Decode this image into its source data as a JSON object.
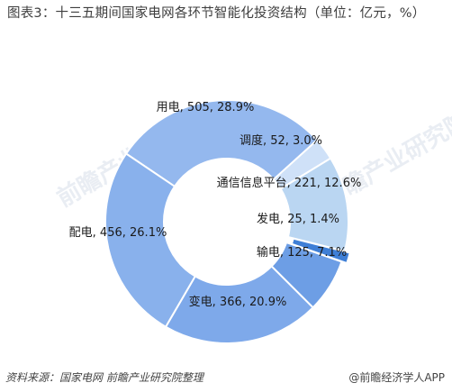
{
  "title": "图表3：十三五期间国家电网各环节智能化投资结构（单位：亿元，%）",
  "footer": {
    "source": "资料来源：国家电网  前瞻产业研究院整理",
    "brand": "@前瞻经济学人APP"
  },
  "watermark": "前瞻产业研究院",
  "chart_data": {
    "type": "pie",
    "variant": "donut",
    "unit": "亿元",
    "slices": [
      {
        "name": "用电",
        "value": 505,
        "percent": 28.9,
        "label": "用电, 505, 28.9%",
        "color": "#94b8ee"
      },
      {
        "name": "调度",
        "value": 52,
        "percent": 3.0,
        "label": "调度, 52, 3.0%",
        "color": "#cfe1f8"
      },
      {
        "name": "通信信息平台",
        "value": 221,
        "percent": 12.6,
        "label": "通信信息平台, 221, 12.6%",
        "color": "#bad6f2"
      },
      {
        "name": "发电",
        "value": 25,
        "percent": 1.4,
        "label": "发电, 25, 1.4%",
        "color": "#3f7fd6"
      },
      {
        "name": "输电",
        "value": 125,
        "percent": 7.1,
        "label": "输电, 125, 7.1%",
        "color": "#6d9ee5"
      },
      {
        "name": "变电",
        "value": 366,
        "percent": 20.9,
        "label": "变电, 366, 20.9%",
        "color": "#7ea9ea"
      },
      {
        "name": "配电",
        "value": 456,
        "percent": 26.1,
        "label": "配电, 456, 26.1%",
        "color": "#89b1ec"
      }
    ]
  }
}
